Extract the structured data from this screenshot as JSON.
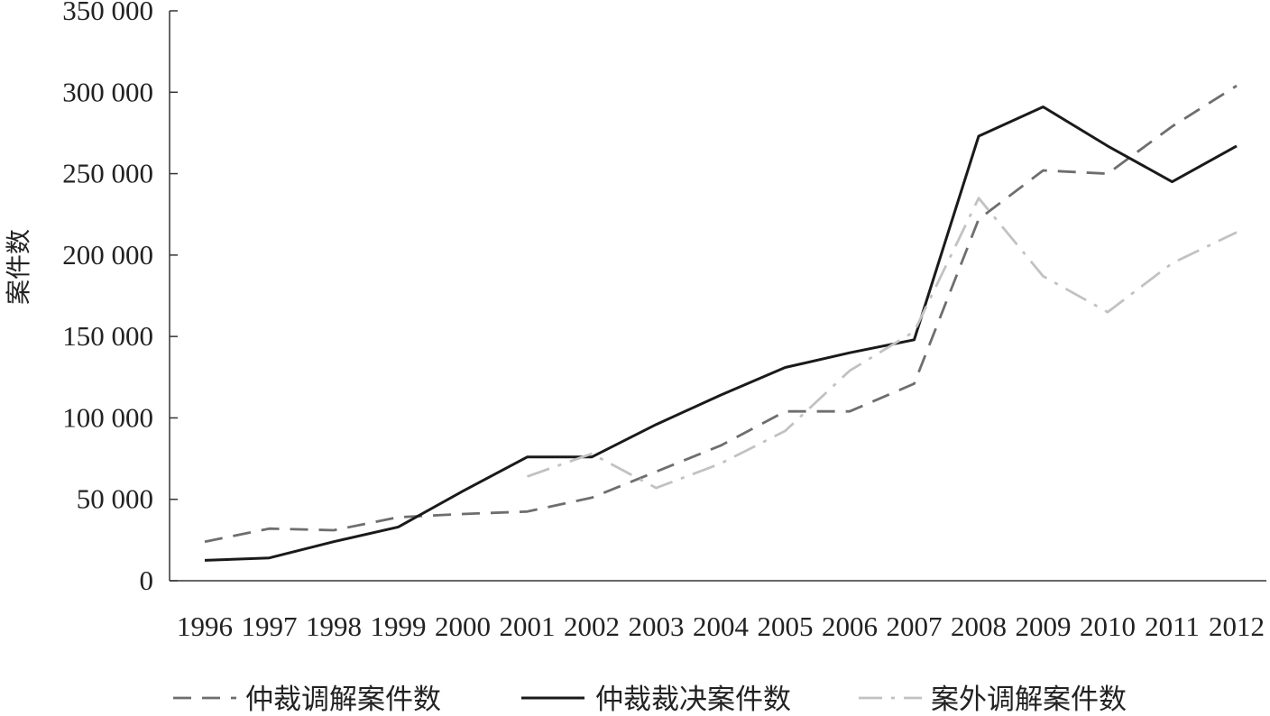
{
  "chart_data": {
    "type": "line",
    "ylabel": "案件数",
    "ylim": [
      0,
      350000
    ],
    "yticks": [
      {
        "value": 0,
        "label": "0"
      },
      {
        "value": 50000,
        "label": "50 000"
      },
      {
        "value": 100000,
        "label": "100 000"
      },
      {
        "value": 150000,
        "label": "150 000"
      },
      {
        "value": 200000,
        "label": "200 000"
      },
      {
        "value": 250000,
        "label": "250 000"
      },
      {
        "value": 300000,
        "label": "300 000"
      },
      {
        "value": 350000,
        "label": "350 000"
      }
    ],
    "categories": [
      "1996",
      "1997",
      "1998",
      "1999",
      "2000",
      "2001",
      "2002",
      "2003",
      "2004",
      "2005",
      "2006",
      "2007",
      "2008",
      "2009",
      "2010",
      "2011",
      "2012"
    ],
    "grid": false,
    "legend_position": "bottom",
    "series": [
      {
        "name": "仲裁调解案件数",
        "color": "#6e6e6e",
        "style": "dashed",
        "values": [
          24000,
          32000,
          31000,
          39000,
          41000,
          42500,
          51000,
          67000,
          83000,
          104000,
          104000,
          121000,
          222000,
          252000,
          250000,
          279000,
          304000
        ]
      },
      {
        "name": "仲裁裁决案件数",
        "color": "#1a1a1a",
        "style": "solid",
        "values": [
          12500,
          14000,
          24000,
          33000,
          55000,
          76000,
          76000,
          96000,
          114000,
          131000,
          140000,
          148000,
          273000,
          291000,
          267000,
          245000,
          267000
        ]
      },
      {
        "name": "案外调解案件数",
        "color": "#c2c2c2",
        "style": "dashdot",
        "values": [
          null,
          null,
          null,
          null,
          null,
          64000,
          78000,
          57000,
          72000,
          92000,
          129000,
          153000,
          235000,
          187000,
          165000,
          195000,
          214000
        ]
      }
    ]
  }
}
